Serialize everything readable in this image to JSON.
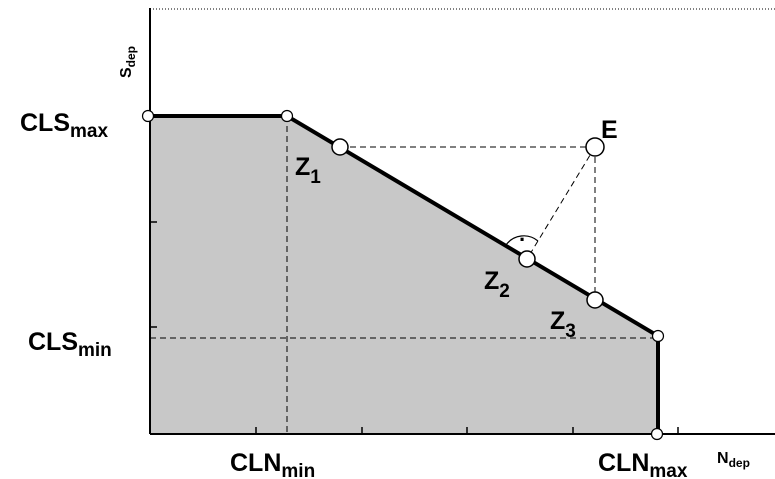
{
  "axes": {
    "y_main": "S",
    "y_sub": "dep",
    "x_main": "N",
    "x_sub": "dep"
  },
  "labels": {
    "cls_max": {
      "main": "CLS",
      "sub": "max"
    },
    "cls_min": {
      "main": "CLS",
      "sub": "min"
    },
    "cln_min": {
      "main": "CLN",
      "sub": "min"
    },
    "cln_max": {
      "main": "CLN",
      "sub": "max"
    },
    "point_e": "E",
    "z1": {
      "main": "Z",
      "sub": "1"
    },
    "z2": {
      "main": "Z",
      "sub": "2"
    },
    "z3": {
      "main": "Z",
      "sub": "3"
    },
    "right_angle_dot": "·"
  },
  "colors": {
    "fill": "#c8c8c8",
    "line": "#000000",
    "marker_fill": "#ffffff"
  }
}
